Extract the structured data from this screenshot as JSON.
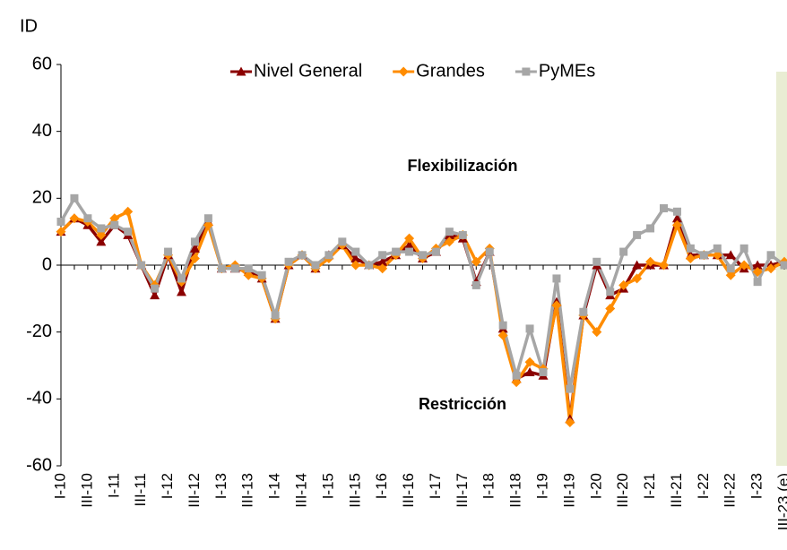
{
  "chart_data": {
    "type": "line",
    "y_label": "ID",
    "annotations": [
      "Flexibilización",
      "Restricción"
    ],
    "categories": [
      "I-10",
      null,
      "III-10",
      null,
      "I-11",
      null,
      "III-11",
      null,
      "I-12",
      null,
      "III-12",
      null,
      "I-13",
      null,
      "III-13",
      null,
      "I-14",
      null,
      "III-14",
      null,
      "I-15",
      null,
      "III-15",
      null,
      "I-16",
      null,
      "III-16",
      null,
      "I-17",
      null,
      "III-17",
      null,
      "I-18",
      null,
      "III-18",
      null,
      "I-19",
      null,
      "III-19",
      null,
      "I-20",
      null,
      "III-20",
      null,
      "I-21",
      null,
      "III-21",
      null,
      "I-22",
      null,
      "III-22",
      null,
      "I-23",
      null,
      "III-23 (e)"
    ],
    "series": [
      {
        "name": "Nivel General",
        "color": "#8b0000",
        "marker": "triangle",
        "values": [
          10,
          14,
          12,
          7,
          12,
          9,
          0,
          -9,
          3,
          -8,
          5,
          13,
          -1,
          -1,
          -2,
          -4,
          -16,
          0,
          3,
          -1,
          3,
          6,
          2,
          0,
          1,
          3,
          6,
          2,
          4,
          9,
          8,
          -5,
          4,
          -19,
          -34,
          -32,
          -33,
          -11,
          -46,
          -15,
          0,
          -9,
          -7,
          0,
          0,
          0,
          14,
          3,
          3,
          3,
          3,
          -1,
          0,
          0,
          1
        ]
      },
      {
        "name": "Grandes",
        "color": "#ff8c00",
        "marker": "diamond",
        "values": [
          10,
          14,
          13,
          9,
          14,
          16,
          0,
          -6,
          3,
          -5,
          2,
          12,
          -1,
          0,
          -3,
          -4,
          -16,
          0,
          3,
          -1,
          2,
          6,
          0,
          0,
          -1,
          3,
          8,
          2,
          5,
          7,
          9,
          1,
          5,
          -21,
          -35,
          -29,
          -31,
          -12,
          -47,
          -15,
          -20,
          -13,
          -6,
          -4,
          1,
          0,
          12,
          2,
          3,
          3,
          -3,
          0,
          -2,
          -1,
          1
        ]
      },
      {
        "name": "PyMEs",
        "color": "#a6a6a6",
        "marker": "square",
        "values": [
          13,
          20,
          14,
          11,
          12,
          10,
          0,
          -7,
          4,
          -4,
          7,
          14,
          -1,
          -1,
          -1,
          -3,
          -15,
          1,
          3,
          0,
          3,
          7,
          4,
          0,
          3,
          4,
          4,
          3,
          4,
          10,
          9,
          -6,
          4,
          -18,
          -33,
          -19,
          -32,
          -4,
          -37,
          -14,
          1,
          -8,
          4,
          9,
          11,
          17,
          16,
          5,
          3,
          5,
          -1,
          5,
          -5,
          3,
          0
        ]
      }
    ],
    "ylim": [
      -60,
      60
    ],
    "yticks": [
      -60,
      -40,
      -20,
      0,
      20,
      40,
      60
    ],
    "legend": "top"
  }
}
